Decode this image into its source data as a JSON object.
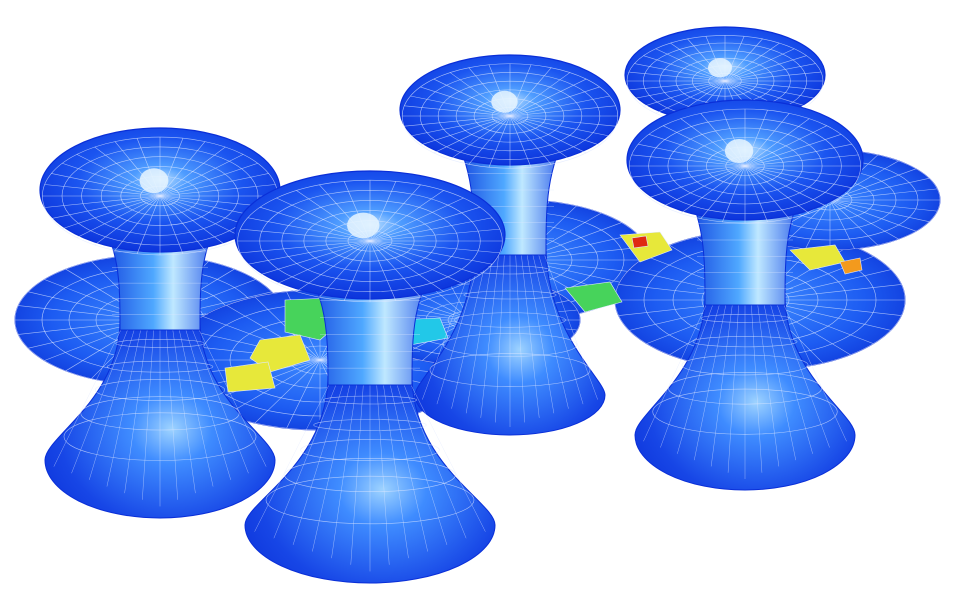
{
  "scene": {
    "background": "#ffffff",
    "mesh_line_color": "#dfe8ff",
    "palette": {
      "deep_blue": "#0a2fd8",
      "blue": "#1b55f0",
      "light_blue": "#3f8cff",
      "highlight": "#bfe2ff",
      "cyan": "#22c8e8",
      "green": "#47d35b",
      "yellow": "#e7e83a",
      "orange": "#f39a1d",
      "red": "#df2a12"
    },
    "hotspot_colors": [
      "#22c8e8",
      "#47d35b",
      "#e7e83a",
      "#f39a1d",
      "#df2a12"
    ]
  }
}
